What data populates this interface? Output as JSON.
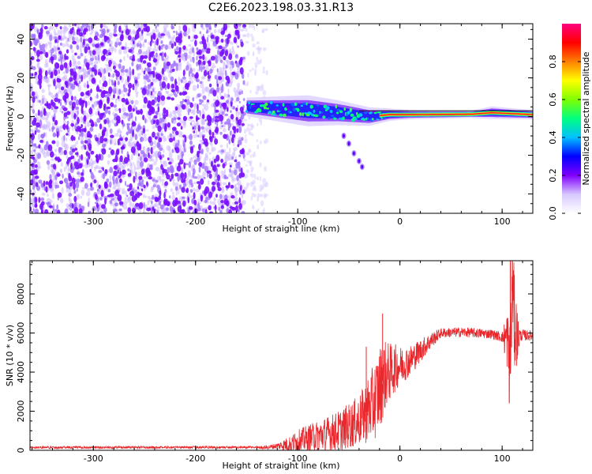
{
  "title": "C2E6.2023.198.03.31.R13",
  "chart_data": [
    {
      "type": "heatmap",
      "xlabel": "Height of straight line (km)",
      "ylabel": "Frequency (Hz)",
      "xlim": [
        -362,
        130
      ],
      "ylim": [
        -50,
        48
      ],
      "xticks": [
        -300,
        -200,
        -100,
        0,
        100
      ],
      "xtick_labels": [
        "-300",
        "-200",
        "-100",
        "0",
        "100"
      ],
      "yticks": [
        -40,
        -20,
        0,
        20,
        40
      ],
      "ytick_labels": [
        "-40",
        "-20",
        "0",
        "20",
        "40"
      ],
      "noise_region_x": [
        -362,
        -152
      ],
      "noise_fade_x": [
        -152,
        -130
      ],
      "signal_band": [
        {
          "x": -150,
          "center": 5,
          "halfwidth": 3
        },
        {
          "x": -120,
          "center": 4,
          "halfwidth": 4
        },
        {
          "x": -90,
          "center": 3,
          "halfwidth": 5
        },
        {
          "x": -60,
          "center": 2,
          "halfwidth": 4
        },
        {
          "x": -30,
          "center": 0,
          "halfwidth": 3
        },
        {
          "x": -10,
          "center": 1,
          "halfwidth": 2
        },
        {
          "x": 10,
          "center": 1,
          "halfwidth": 1.5
        },
        {
          "x": 70,
          "center": 1.2,
          "halfwidth": 1.2
        },
        {
          "x": 90,
          "center": 2,
          "halfwidth": 2
        },
        {
          "x": 130,
          "center": 1,
          "halfwidth": 1.5
        }
      ],
      "trail_points": [
        [
          -55,
          -10
        ],
        [
          -50,
          -14
        ],
        [
          -45,
          -19
        ],
        [
          -40,
          -23
        ],
        [
          -37,
          -26
        ]
      ],
      "colorbar": {
        "label": "Normalized spectral amplitude",
        "range": [
          0,
          1
        ],
        "ticks": [
          0.0,
          0.2,
          0.4,
          0.6,
          0.8
        ],
        "tick_labels": [
          "0.0",
          "0.2",
          "0.4",
          "0.6",
          "0.8"
        ],
        "colors": [
          "#ffffff",
          "#d8c8ff",
          "#8000ff",
          "#0000ff",
          "#00c0ff",
          "#00ff80",
          "#80ff00",
          "#ffff00",
          "#ff8000",
          "#ff0000",
          "#ff0080"
        ]
      }
    },
    {
      "type": "line",
      "xlabel": "Height of straight line (km)",
      "ylabel": "SNR (10 * v/v)",
      "xlim": [
        -362,
        130
      ],
      "ylim": [
        0,
        9700
      ],
      "xticks": [
        -300,
        -200,
        -100,
        0,
        100
      ],
      "xtick_labels": [
        "-300",
        "-200",
        "-100",
        "0",
        "100"
      ],
      "yticks": [
        0,
        2000,
        4000,
        6000,
        8000
      ],
      "ytick_labels": [
        "0",
        "2000",
        "4000",
        "6000",
        "8000"
      ],
      "series_color": "#e8282c",
      "series": [
        {
          "name": "",
          "baseline_x": [
            -362,
            -200,
            -130,
            -110,
            -90,
            -60,
            -40,
            -25,
            -15,
            -5,
            10,
            20,
            30,
            40,
            60,
            90,
            105,
            108,
            110,
            112,
            115,
            120,
            130
          ],
          "baseline_y": [
            150,
            150,
            150,
            300,
            600,
            1000,
            1500,
            2500,
            3800,
            4200,
            4600,
            5100,
            5600,
            6000,
            6050,
            5950,
            5700,
            4000,
            9000,
            6500,
            5800,
            5900,
            5850
          ],
          "noise_amp_x": [
            -362,
            -140,
            -120,
            -100,
            -70,
            -40,
            -20,
            -10,
            0,
            20,
            40,
            100,
            108,
            112,
            118,
            130
          ],
          "noise_amp_y": [
            60,
            60,
            150,
            600,
            900,
            1300,
            2200,
            1500,
            1000,
            600,
            250,
            250,
            2500,
            2500,
            300,
            250
          ],
          "spikes": [
            [
              -17,
              7000
            ],
            [
              -33,
              5300
            ],
            [
              108,
              9700
            ],
            [
              110,
              9600
            ],
            [
              107,
              2400
            ]
          ]
        }
      ]
    }
  ]
}
